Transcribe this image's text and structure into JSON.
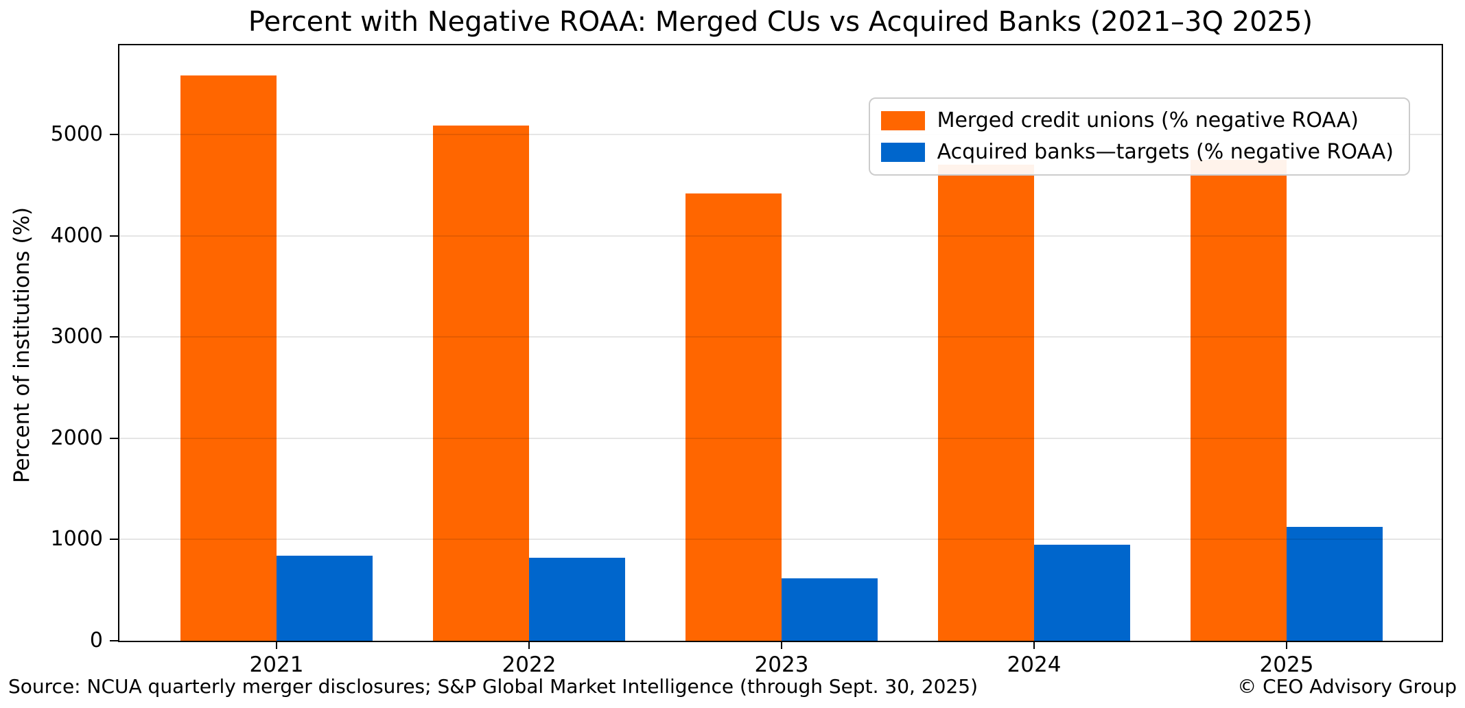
{
  "chart_data": {
    "type": "bar",
    "title": "Percent with Negative ROAA: Merged CUs vs Acquired Banks (2021–3Q 2025)",
    "xlabel": "",
    "ylabel": "Percent of institutions (%)",
    "categories": [
      "2021",
      "2022",
      "2023",
      "2024",
      "2025"
    ],
    "series": [
      {
        "name": "Merged credit unions (% negative ROAA)",
        "color": "#ff6600",
        "values": [
          5580,
          5090,
          4420,
          4700,
          4750
        ]
      },
      {
        "name": "Acquired banks—targets (% negative ROAA)",
        "color": "#0066cc",
        "values": [
          840,
          820,
          615,
          945,
          1125
        ]
      }
    ],
    "ylim": [
      0,
      5880
    ],
    "yticks": [
      0,
      1000,
      2000,
      3000,
      4000,
      5000
    ],
    "grid": true,
    "grid_axis": "y",
    "legend_position": "upper right"
  },
  "footer": {
    "source": "Source: NCUA quarterly merger disclosures; S&P Global Market Intelligence (through Sept. 30, 2025)",
    "copyright": "© CEO Advisory Group"
  }
}
